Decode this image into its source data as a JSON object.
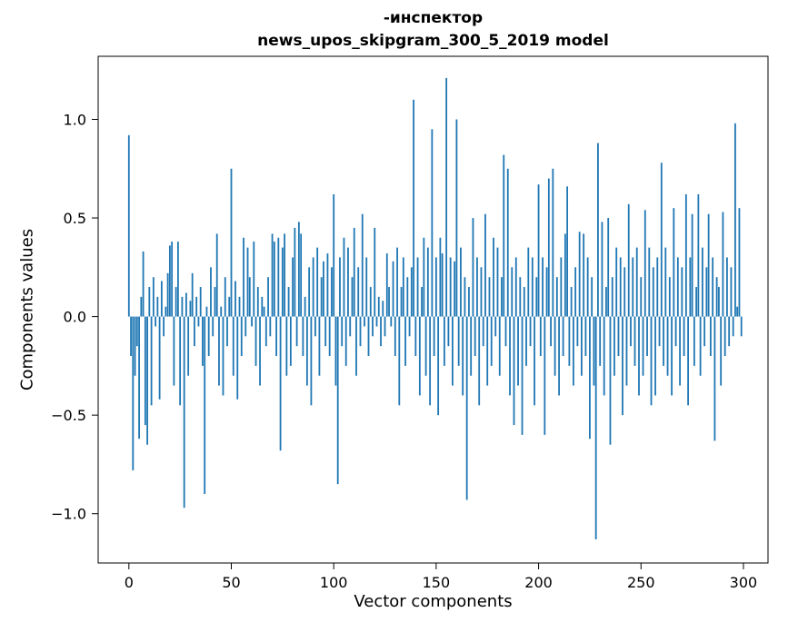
{
  "chart_data": {
    "type": "bar",
    "title": "-инспектор",
    "subtitle": "news_upos_skipgram_300_5_2019 model",
    "xlabel": "Vector components",
    "ylabel": "Components values",
    "xlim": [
      -15,
      312
    ],
    "ylim": [
      -1.25,
      1.32
    ],
    "xticks": [
      0,
      50,
      100,
      150,
      200,
      250,
      300
    ],
    "xtick_labels": [
      "0",
      "50",
      "100",
      "150",
      "200",
      "250",
      "300"
    ],
    "yticks": [
      -1.0,
      -0.5,
      0.0,
      0.5,
      1.0
    ],
    "ytick_labels": [
      "−1.0",
      "−0.5",
      "0.0",
      "0.5",
      "1.0"
    ],
    "bar_color": "#1f77b4",
    "grid": false,
    "legend": null,
    "values": [
      0.92,
      -0.2,
      -0.78,
      -0.3,
      -0.15,
      -0.62,
      0.1,
      0.33,
      -0.55,
      -0.65,
      0.15,
      -0.45,
      0.2,
      -0.05,
      0.1,
      -0.42,
      0.18,
      -0.1,
      0.05,
      0.22,
      0.36,
      0.38,
      -0.35,
      0.15,
      0.38,
      -0.45,
      0.1,
      -0.97,
      0.12,
      -0.3,
      0.08,
      0.22,
      -0.15,
      0.1,
      -0.05,
      0.15,
      -0.25,
      -0.9,
      0.05,
      -0.2,
      0.25,
      -0.1,
      0.15,
      0.42,
      -0.35,
      0.05,
      -0.4,
      0.2,
      -0.15,
      0.1,
      0.75,
      -0.3,
      0.18,
      -0.42,
      0.1,
      -0.2,
      0.4,
      -0.1,
      0.35,
      0.2,
      -0.05,
      0.38,
      -0.25,
      0.15,
      -0.35,
      0.1,
      0.05,
      -0.15,
      0.2,
      -0.1,
      0.42,
      0.38,
      -0.2,
      0.4,
      -0.68,
      0.35,
      0.42,
      -0.3,
      0.15,
      -0.25,
      0.3,
      0.45,
      -0.15,
      0.48,
      0.42,
      -0.2,
      0.1,
      -0.35,
      0.25,
      -0.45,
      0.3,
      -0.1,
      0.35,
      -0.3,
      0.2,
      0.28,
      -0.15,
      0.32,
      -0.2,
      0.25,
      0.62,
      -0.35,
      -0.85,
      0.3,
      -0.15,
      0.4,
      -0.25,
      0.35,
      -0.1,
      0.2,
      0.45,
      -0.3,
      0.25,
      -0.15,
      0.52,
      -0.05,
      0.3,
      -0.2,
      0.15,
      -0.1,
      0.45,
      -0.05,
      0.1,
      -0.15,
      0.08,
      -0.1,
      0.32,
      0.15,
      -0.05,
      0.28,
      -0.2,
      0.35,
      -0.45,
      0.15,
      0.3,
      -0.25,
      0.2,
      -0.1,
      0.25,
      1.1,
      -0.2,
      0.3,
      -0.4,
      0.15,
      0.4,
      -0.3,
      0.35,
      -0.45,
      0.95,
      -0.2,
      0.3,
      -0.5,
      0.4,
      0.32,
      -0.25,
      1.21,
      -0.15,
      0.3,
      -0.35,
      0.28,
      1.0,
      -0.25,
      0.35,
      -0.4,
      0.2,
      -0.93,
      0.15,
      -0.3,
      0.5,
      -0.2,
      0.3,
      -0.45,
      0.25,
      -0.15,
      0.52,
      -0.35,
      0.2,
      -0.25,
      0.4,
      -0.1,
      0.35,
      -0.3,
      0.2,
      0.82,
      -0.15,
      0.75,
      -0.4,
      0.25,
      -0.55,
      0.3,
      -0.35,
      0.2,
      -0.6,
      0.15,
      -0.25,
      0.35,
      -0.15,
      0.3,
      -0.45,
      0.2,
      0.67,
      -0.2,
      0.3,
      -0.6,
      0.25,
      0.7,
      -0.15,
      0.75,
      -0.3,
      0.2,
      -0.4,
      0.3,
      -0.2,
      0.42,
      0.66,
      -0.25,
      0.15,
      -0.35,
      0.25,
      -0.15,
      0.43,
      -0.3,
      0.42,
      -0.2,
      0.3,
      -0.62,
      0.2,
      -0.35,
      -1.13,
      0.88,
      -0.25,
      0.48,
      -0.4,
      0.15,
      0.5,
      -0.65,
      0.2,
      -0.3,
      0.35,
      -0.2,
      0.3,
      -0.5,
      0.25,
      -0.35,
      0.57,
      -0.15,
      0.3,
      -0.25,
      0.35,
      -0.4,
      0.2,
      -0.3,
      0.54,
      -0.2,
      0.35,
      -0.45,
      0.25,
      -0.4,
      0.3,
      -0.15,
      0.78,
      -0.25,
      0.35,
      -0.3,
      0.2,
      -0.4,
      0.55,
      -0.15,
      0.3,
      -0.35,
      0.25,
      -0.2,
      0.62,
      -0.45,
      0.3,
      0.52,
      -0.25,
      0.15,
      0.62,
      -0.3,
      0.35,
      -0.15,
      0.25,
      0.52,
      -0.2,
      0.3,
      -0.63,
      0.2,
      0.15,
      -0.35,
      0.53,
      -0.2,
      0.3,
      -0.15,
      0.25,
      -0.1,
      0.98,
      0.05,
      0.55,
      -0.1
    ]
  }
}
